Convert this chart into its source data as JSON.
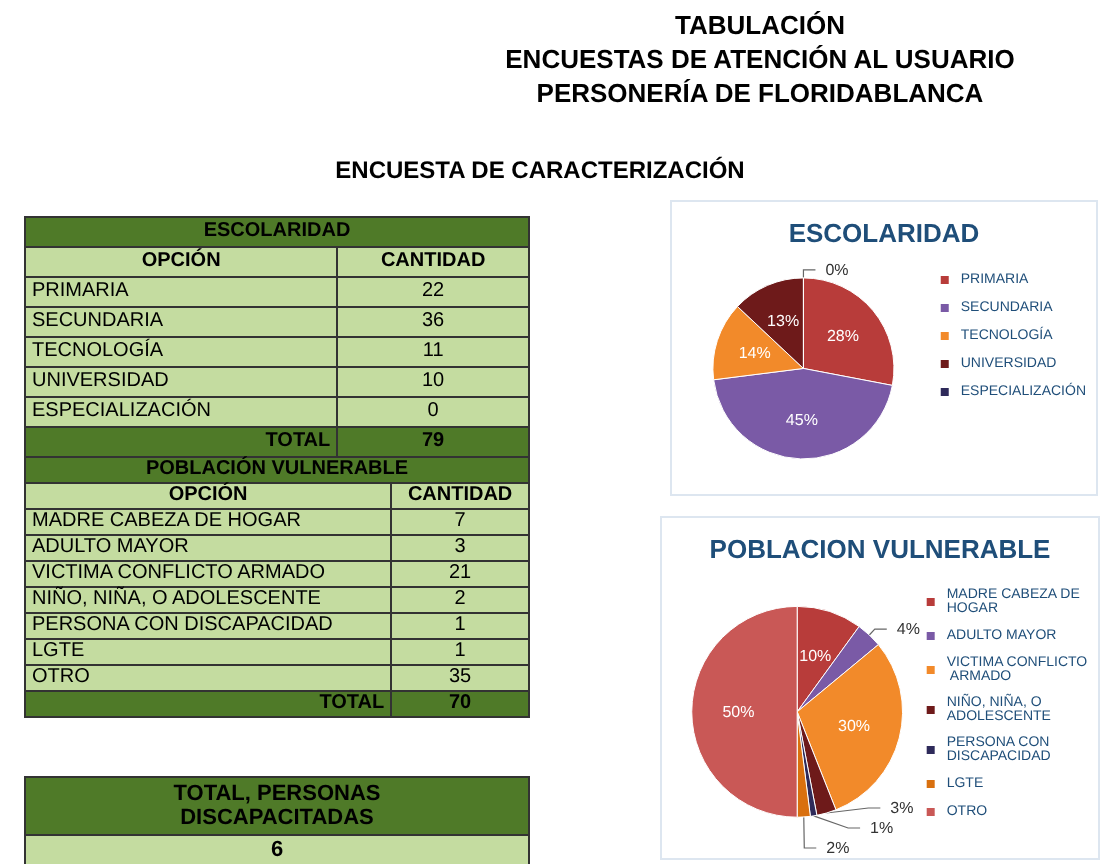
{
  "chart_data": [
    {
      "type": "other",
      "title": "ESCOLARIDAD",
      "categories": [
        "PRIMARIA",
        "SECUNDARIA",
        "TECNOLOGÍA",
        "UNIVERSIDAD",
        "ESPECIALIZACIÓN"
      ],
      "values": [
        22,
        36,
        11,
        10,
        0
      ],
      "data_labels": true,
      "totals": [
        "79"
      ],
      "annotations": [
        "TABULACIÓN",
        "ENCUESTAS DE ATENCIÓN AL USUARIO",
        "PERSONERÍA DE FLORIDABLANCA",
        "ENCUESTA DE CARACTERIZACIÓN",
        "OPCIÓN",
        "CANTIDAD",
        "TOTAL"
      ]
    },
    {
      "type": "pie",
      "title": "ESCOLARIDAD",
      "categories": [
        "PRIMARIA",
        "SECUNDARIA",
        "TECNOLOGÍA",
        "UNIVERSIDAD",
        "ESPECIALIZACIÓN"
      ],
      "values": [
        28,
        45,
        14,
        13,
        0
      ],
      "colors": [
        "#b83c3a",
        "#7a5aa6",
        "#f28a2a",
        "#6e1a1a",
        "#2e2a5a"
      ],
      "value_labels": [
        "28%",
        "45%",
        "14%",
        "13%",
        "0%"
      ],
      "legend": "right"
    },
    {
      "type": "other",
      "title": "POBLACIÓN VULNERABLE",
      "categories": [
        "MADRE CABEZA DE HOGAR",
        "ADULTO MAYOR",
        "VICTIMA CONFLICTO ARMADO",
        "NIÑO, NIÑA, O ADOLESCENTE",
        "PERSONA CON DISCAPACIDAD",
        "LGTE",
        "OTRO"
      ],
      "values": [
        7,
        3,
        21,
        2,
        1,
        1,
        35
      ],
      "data_labels": true,
      "totals": [
        "70"
      ],
      "annotations": [
        "OPCIÓN",
        "CANTIDAD",
        "TOTAL"
      ]
    },
    {
      "type": "pie",
      "title": "POBLACION VULNERABLE",
      "categories": [
        "MADRE CABEZA DE HOGAR",
        "ADULTO MAYOR",
        "VICTIMA CONFLICTO ARMADO",
        "NIÑO, NIÑA, O ADOLESCENTE",
        "PERSONA CON DISCAPACIDAD",
        "LGTE",
        "OTRO"
      ],
      "values": [
        10,
        4,
        30,
        3,
        1,
        2,
        50
      ],
      "colors": [
        "#b83c3a",
        "#7a5aa6",
        "#f28a2a",
        "#6e1a1a",
        "#2e2a5a",
        "#d9700f",
        "#c95856"
      ],
      "value_labels": [
        "10%",
        "4%",
        "30%",
        "3%",
        "1%",
        "2%",
        "50%"
      ],
      "legend": "right"
    },
    {
      "type": "other",
      "title": "TOTAL, PERSONAS DISCAPACITADAS",
      "annotations": [
        "6"
      ]
    }
  ]
}
